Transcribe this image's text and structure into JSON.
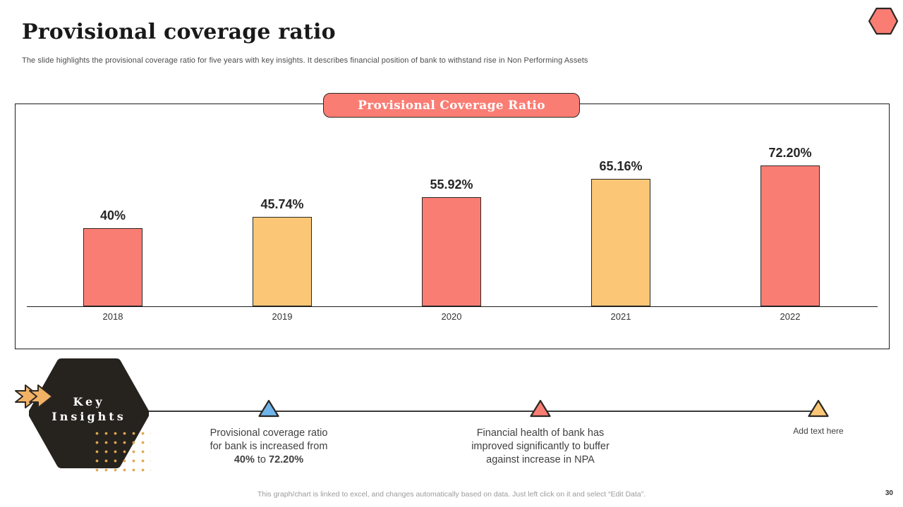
{
  "slide": {
    "title": "Provisional coverage ratio",
    "subtitle": "The slide highlights the provisional coverage ratio for five years with key insights. It describes financial position of bank to withstand rise in Non Performing Assets",
    "footer": "This graph/chart is linked to excel,  and changes automatically based on data. Just left click on it and select “Edit Data”.",
    "page_number": "30"
  },
  "colors": {
    "salmon": "#FA7D74",
    "amber": "#FBC776",
    "blue": "#6FB5EB",
    "dark": "#26221E",
    "outline": "#2B2824",
    "dots": "#DFA850"
  },
  "chart_data": {
    "type": "bar",
    "title": "Provisional Coverage Ratio",
    "categories": [
      "2018",
      "2019",
      "2020",
      "2021",
      "2022"
    ],
    "values": [
      40,
      45.74,
      55.92,
      65.16,
      72.2
    ],
    "data_labels": [
      "40%",
      "45.74%",
      "55.92%",
      "65.16%",
      "72.20%"
    ],
    "bar_colors": [
      "#FA7D74",
      "#FBC776",
      "#FA7D74",
      "#FBC776",
      "#FA7D74"
    ],
    "xlabel": "",
    "ylabel": "",
    "ylim": [
      0,
      100
    ],
    "grid": false,
    "legend": "none",
    "axis_labels_hidden": true
  },
  "key_insights": {
    "heading_line1": "Key",
    "heading_line2": "Insights",
    "items": [
      {
        "marker_color": "#6FB5EB",
        "variant": "text",
        "lines": [
          [
            {
              "t": "Provisional coverage ratio"
            }
          ],
          [
            {
              "t": "for bank is increased from"
            }
          ],
          [
            {
              "t": "40%",
              "b": true
            },
            {
              "t": " to "
            },
            {
              "t": "72.20%",
              "b": true
            }
          ]
        ]
      },
      {
        "marker_color": "#FA7D74",
        "variant": "text",
        "lines": [
          [
            {
              "t": "Financial health  of bank has"
            }
          ],
          [
            {
              "t": "improved significantly  to buffer"
            }
          ],
          [
            {
              "t": "against increase in NPA"
            }
          ]
        ]
      },
      {
        "marker_color": "#FBC776",
        "variant": "placeholder",
        "lines": [
          [
            {
              "t": "Add text here"
            }
          ]
        ]
      }
    ]
  }
}
